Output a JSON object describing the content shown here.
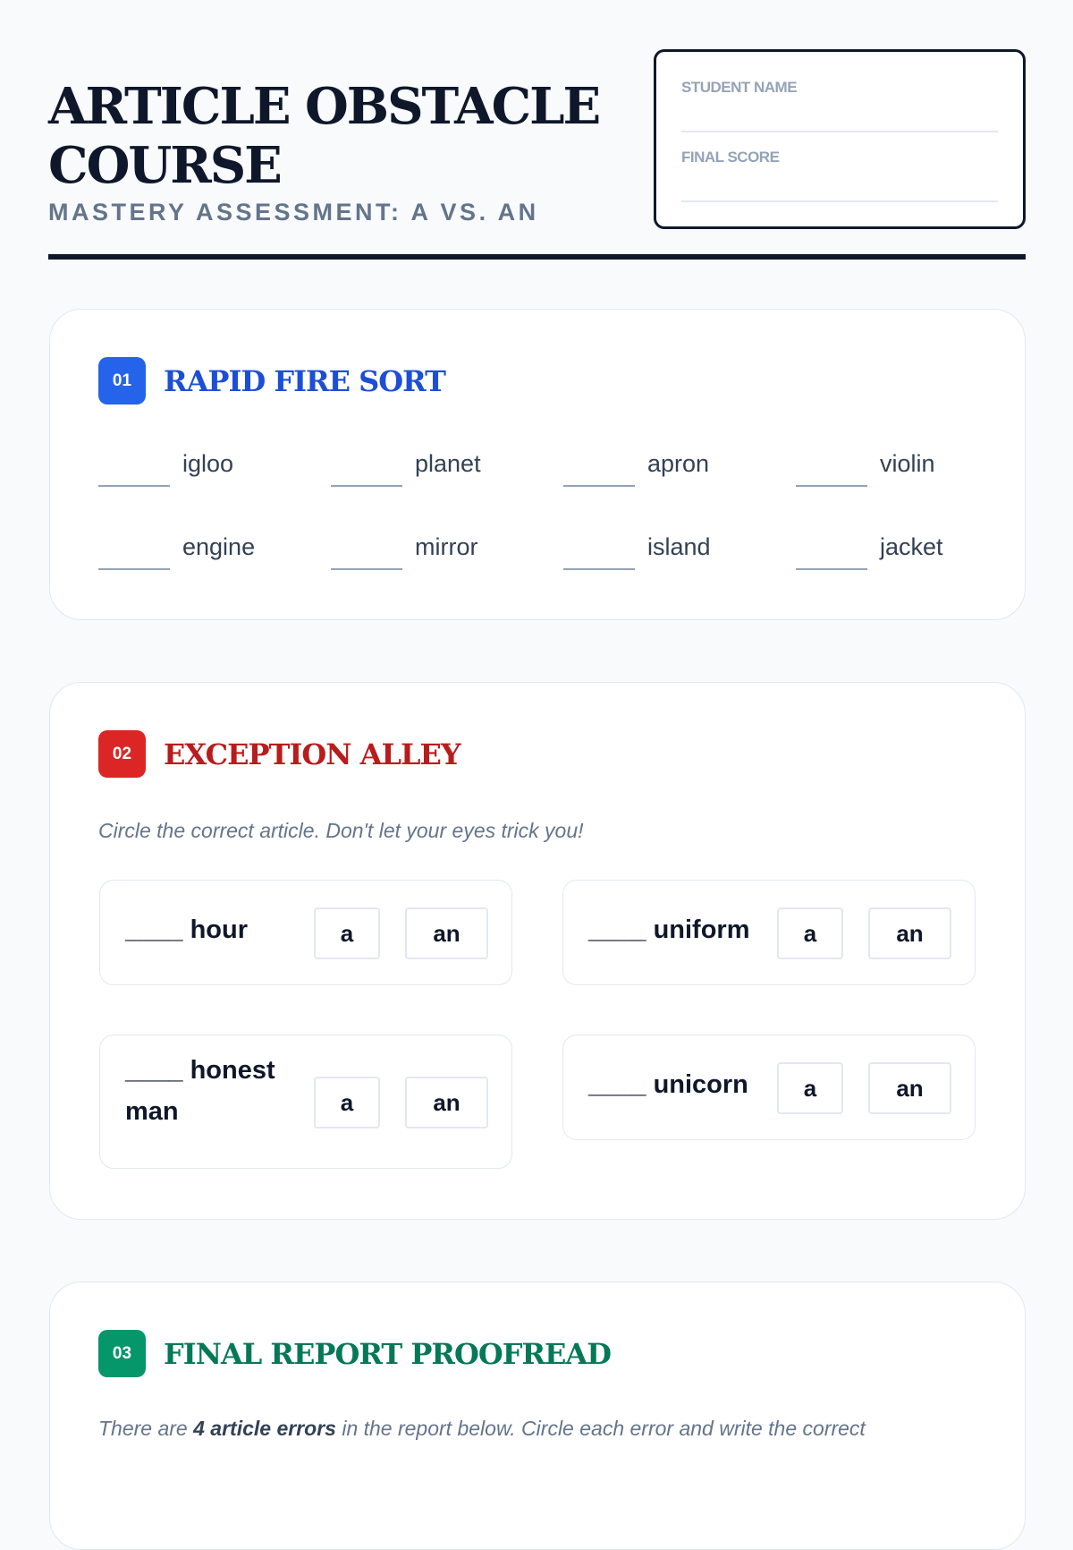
{
  "header": {
    "title": "ARTICLE OBSTACLE COURSE",
    "subtitle": "MASTERY ASSESSMENT: A VS. AN",
    "student_label": "STUDENT NAME",
    "score_label": "FINAL SCORE"
  },
  "sections": [
    {
      "number": "01",
      "title": "RAPID FIRE SORT",
      "color": "#1d4ed8",
      "badge_color": "#2563eb",
      "words": [
        "igloo",
        "planet",
        "apron",
        "violin",
        "engine",
        "mirror",
        "island",
        "jacket"
      ]
    },
    {
      "number": "02",
      "title": "EXCEPTION ALLEY",
      "color": "#b91c1c",
      "badge_color": "#dc2626",
      "instruction": "Circle the correct article. Don't let your eyes trick you!",
      "items": [
        {
          "text": "____ hour",
          "a": "a",
          "an": "an"
        },
        {
          "text": "____ uniform",
          "a": "a",
          "an": "an"
        },
        {
          "text": "____ honest man",
          "a": "a",
          "an": "an"
        },
        {
          "text": "____ unicorn",
          "a": "a",
          "an": "an"
        }
      ]
    },
    {
      "number": "03",
      "title": "FINAL REPORT PROOFREAD",
      "color": "#047857",
      "badge_color": "#059669",
      "instruction_pre": "There are ",
      "instruction_bold": "4 article errors",
      "instruction_post": " in the report below. Circle each error and write the correct"
    }
  ]
}
